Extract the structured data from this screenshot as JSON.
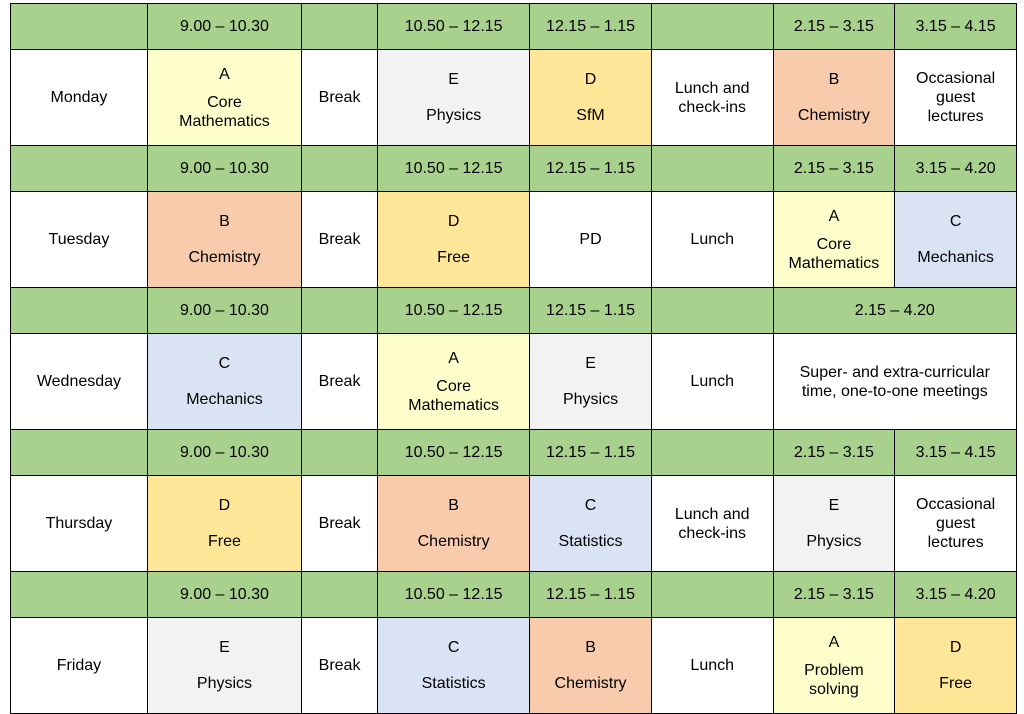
{
  "colors": {
    "time_row": "#a9d18e",
    "A": "#ffffcc",
    "B": "#f8cbad",
    "C": "#dae3f3",
    "D": "#ffe699",
    "E": "#f2f2f2",
    "plain": "#ffffff"
  },
  "days": [
    {
      "day": "Monday",
      "times": [
        "",
        "9.00 – 10.30",
        "",
        "10.50 – 12.15",
        "12.15 – 1.15",
        "",
        "2.15 – 3.15",
        "3.15 – 4.15"
      ],
      "cells": [
        {
          "type": "day",
          "text": "Monday"
        },
        {
          "type": "subject",
          "letter": "A",
          "lines": [
            "Core",
            "Mathematics"
          ],
          "color": "A"
        },
        {
          "type": "plain",
          "lines": [
            "Break"
          ]
        },
        {
          "type": "subject",
          "letter": "E",
          "lines": [
            "Physics"
          ],
          "color": "E"
        },
        {
          "type": "subject",
          "letter": "D",
          "lines": [
            "SfM"
          ],
          "color": "D"
        },
        {
          "type": "plain",
          "lines": [
            "Lunch and",
            "check-ins"
          ]
        },
        {
          "type": "subject",
          "letter": "B",
          "lines": [
            "Chemistry"
          ],
          "color": "B"
        },
        {
          "type": "plain",
          "lines": [
            "Occasional",
            "guest",
            "lectures"
          ]
        }
      ]
    },
    {
      "day": "Tuesday",
      "times": [
        "",
        "9.00 – 10.30",
        "",
        "10.50 – 12.15",
        "12.15 – 1.15",
        "",
        "2.15 – 3.15",
        "3.15 – 4.20"
      ],
      "cells": [
        {
          "type": "day",
          "text": "Tuesday"
        },
        {
          "type": "subject",
          "letter": "B",
          "lines": [
            "Chemistry"
          ],
          "color": "B"
        },
        {
          "type": "plain",
          "lines": [
            "Break"
          ]
        },
        {
          "type": "subject",
          "letter": "D",
          "lines": [
            "Free"
          ],
          "color": "D"
        },
        {
          "type": "plain",
          "lines": [
            "PD"
          ]
        },
        {
          "type": "plain",
          "lines": [
            "Lunch"
          ]
        },
        {
          "type": "subject",
          "letter": "A",
          "lines": [
            "Core",
            "Mathematics"
          ],
          "color": "A"
        },
        {
          "type": "subject",
          "letter": "C",
          "lines": [
            "Mechanics"
          ],
          "color": "C"
        }
      ]
    },
    {
      "day": "Wednesday",
      "times": [
        "",
        "9.00 – 10.30",
        "",
        "10.50 – 12.15",
        "12.15 – 1.15",
        "",
        "2.15 – 4.20"
      ],
      "cells": [
        {
          "type": "day",
          "text": "Wednesday"
        },
        {
          "type": "subject",
          "letter": "C",
          "lines": [
            "Mechanics"
          ],
          "color": "C"
        },
        {
          "type": "plain",
          "lines": [
            "Break"
          ]
        },
        {
          "type": "subject",
          "letter": "A",
          "lines": [
            "Core",
            "Mathematics"
          ],
          "color": "A"
        },
        {
          "type": "subject",
          "letter": "E",
          "lines": [
            "Physics"
          ],
          "color": "E"
        },
        {
          "type": "plain",
          "lines": [
            "Lunch"
          ]
        },
        {
          "type": "plain",
          "lines": [
            "Super- and extra-curricular",
            "time, one-to-one meetings"
          ],
          "span": 2
        }
      ]
    },
    {
      "day": "Thursday",
      "times": [
        "",
        "9.00 – 10.30",
        "",
        "10.50 – 12.15",
        "12.15 – 1.15",
        "",
        "2.15 – 3.15",
        "3.15 – 4.15"
      ],
      "cells": [
        {
          "type": "day",
          "text": "Thursday"
        },
        {
          "type": "subject",
          "letter": "D",
          "lines": [
            "Free"
          ],
          "color": "D"
        },
        {
          "type": "plain",
          "lines": [
            "Break"
          ]
        },
        {
          "type": "subject",
          "letter": "B",
          "lines": [
            "Chemistry"
          ],
          "color": "B"
        },
        {
          "type": "subject",
          "letter": "C",
          "lines": [
            "Statistics"
          ],
          "color": "C"
        },
        {
          "type": "plain",
          "lines": [
            "Lunch and",
            "check-ins"
          ]
        },
        {
          "type": "subject",
          "letter": "E",
          "lines": [
            "Physics"
          ],
          "color": "E"
        },
        {
          "type": "plain",
          "lines": [
            "Occasional",
            "guest",
            "lectures"
          ]
        }
      ]
    },
    {
      "day": "Friday",
      "times": [
        "",
        "9.00 – 10.30",
        "",
        "10.50 – 12.15",
        "12.15 – 1.15",
        "",
        "2.15 – 3.15",
        "3.15 – 4.20"
      ],
      "cells": [
        {
          "type": "day",
          "text": "Friday"
        },
        {
          "type": "subject",
          "letter": "E",
          "lines": [
            "Physics"
          ],
          "color": "E"
        },
        {
          "type": "plain",
          "lines": [
            "Break"
          ]
        },
        {
          "type": "subject",
          "letter": "C",
          "lines": [
            "Statistics"
          ],
          "color": "C"
        },
        {
          "type": "subject",
          "letter": "B",
          "lines": [
            "Chemistry"
          ],
          "color": "B"
        },
        {
          "type": "plain",
          "lines": [
            "Lunch"
          ]
        },
        {
          "type": "subject",
          "letter": "A",
          "lines": [
            "Problem",
            "solving"
          ],
          "color": "A"
        },
        {
          "type": "subject",
          "letter": "D",
          "lines": [
            "Free"
          ],
          "color": "D"
        }
      ]
    }
  ]
}
